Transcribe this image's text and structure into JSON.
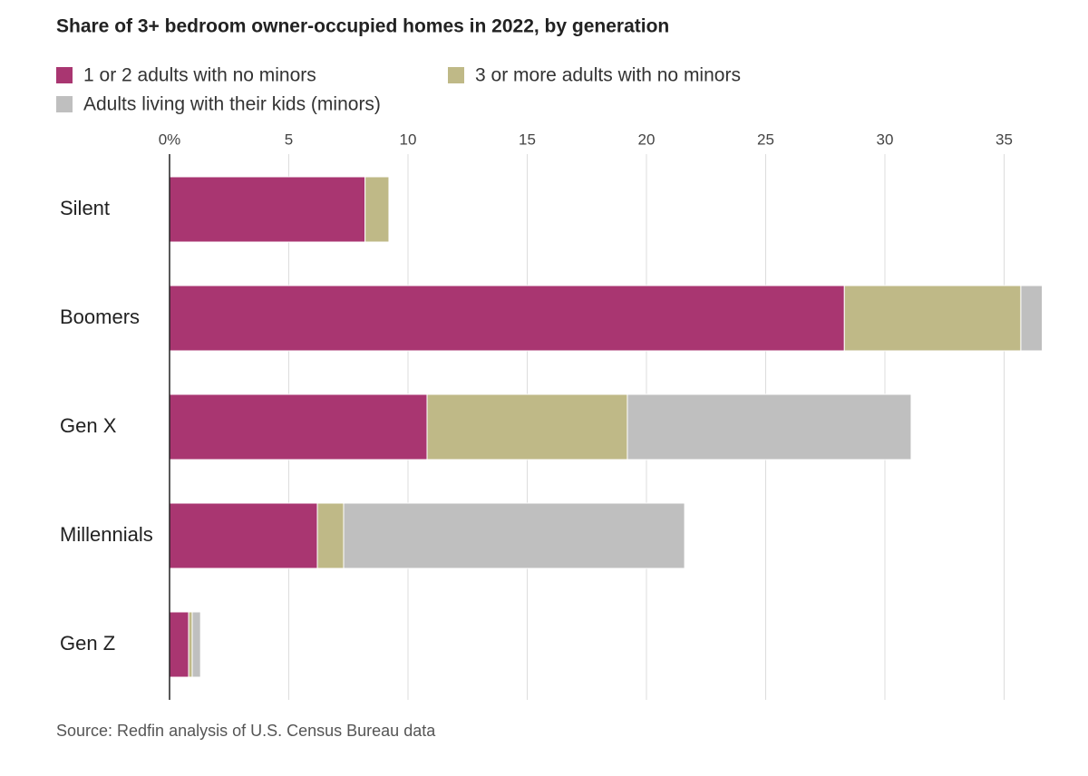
{
  "chart_data": {
    "type": "stacked-bar-horizontal",
    "title": "Share of 3+ bedroom owner-occupied homes in 2022, by generation",
    "source": "Source: Redfin analysis of U.S. Census Bureau data",
    "categories": [
      "Silent",
      "Boomers",
      "Gen X",
      "Millennials",
      "Gen Z"
    ],
    "series": [
      {
        "name": "1 or 2 adults with no minors",
        "color": "#a93671",
        "values": [
          8.2,
          28.3,
          10.8,
          6.2,
          0.8
        ]
      },
      {
        "name": "3 or more adults with no minors",
        "color": "#bfb987",
        "values": [
          1.0,
          7.4,
          8.4,
          1.1,
          0.15
        ]
      },
      {
        "name": "Adults living with their kids (minors)",
        "color": "#bfbfbf",
        "values": [
          0,
          0.9,
          11.9,
          14.3,
          0.35
        ]
      }
    ],
    "xlim": [
      0,
      37
    ],
    "xticks": [
      {
        "value": 0,
        "label": "0%"
      },
      5,
      10,
      15,
      20,
      25,
      30,
      35
    ],
    "grid": true
  }
}
